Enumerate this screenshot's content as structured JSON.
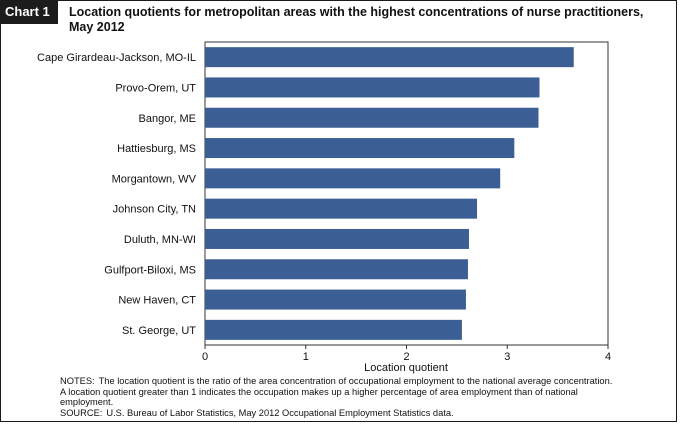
{
  "header": {
    "badge": "Chart 1",
    "title": "Location quotients for metropolitan areas with the highest concentrations of nurse practitioners, May 2012"
  },
  "chart_data": {
    "type": "bar",
    "orientation": "horizontal",
    "title": "Location quotients for metropolitan areas with the highest concentrations of nurse practitioners, May 2012",
    "xlabel": "Location quotient",
    "ylabel": "",
    "xlim": [
      0,
      4
    ],
    "xticks": [
      "0",
      "1",
      "2",
      "3",
      "4"
    ],
    "grid": false,
    "bar_color": "#3b5f94",
    "categories": [
      "Cape Girardeau-Jackson, MO-IL",
      "Provo-Orem, UT",
      "Bangor, ME",
      "Hattiesburg, MS",
      "Morgantown, WV",
      "Johnson City, TN",
      "Duluth, MN-WI",
      "Gulfport-Biloxi, MS",
      "New Haven, CT",
      "St. George, UT"
    ],
    "values": [
      3.66,
      3.32,
      3.31,
      3.07,
      2.93,
      2.7,
      2.62,
      2.61,
      2.59,
      2.55
    ]
  },
  "footer": {
    "notes_label": "NOTES:",
    "notes_text": "The location quotient is the ratio of the area concentration of occupational employment to the national average concentration. A location quotient greater than 1 indicates the occupation makes up a higher percentage of area employment than of national employment.",
    "source_label": "SOURCE:",
    "source_text": "U.S. Bureau of Labor Statistics, May 2012 Occupational Employment Statistics data."
  }
}
